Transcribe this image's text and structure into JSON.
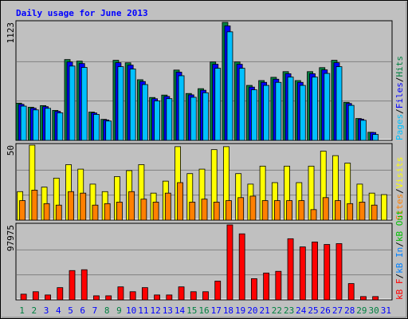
{
  "chart_data": [
    {
      "type": "bar",
      "title": "Daily usage for June 2013",
      "ylim": [
        0,
        1123
      ],
      "yticks": [
        1123
      ],
      "legend_separator": "/",
      "series": [
        {
          "name": "Pages",
          "color": "#00c0ff",
          "values": [
            326,
            290,
            305,
            262,
            707,
            694,
            247,
            184,
            701,
            679,
            531,
            375,
            397,
            615,
            410,
            453,
            686,
            1033,
            686,
            481,
            523,
            552,
            602,
            523,
            602,
            637,
            701,
            333,
            191,
            56,
            0
          ]
        },
        {
          "name": "Files",
          "color": "#0000ff",
          "values": [
            343,
            306,
            321,
            276,
            746,
            731,
            261,
            194,
            739,
            716,
            560,
            396,
            418,
            649,
            433,
            477,
            724,
            1089,
            724,
            507,
            552,
            582,
            634,
            552,
            634,
            671,
            739,
            351,
            202,
            75,
            0
          ]
        },
        {
          "name": "Hits",
          "color": "#008040",
          "values": [
            354,
            315,
            331,
            285,
            769,
            754,
            269,
            200,
            762,
            738,
            577,
            408,
            431,
            669,
            446,
            492,
            746,
            1123,
            746,
            523,
            569,
            600,
            654,
            569,
            654,
            692,
            762,
            362,
            208,
            77,
            0
          ]
        }
      ]
    },
    {
      "type": "bar",
      "ylim": [
        0,
        50
      ],
      "yticks": [
        50
      ],
      "legend_separator": "/",
      "series": [
        {
          "name": "Sites",
          "color": "#ff8000",
          "values": [
            13,
            20,
            11,
            10,
            19,
            18,
            10,
            11,
            12,
            19,
            14,
            12,
            18,
            25,
            12,
            14,
            12,
            13,
            15,
            16,
            13,
            13,
            13,
            13,
            7,
            15,
            13,
            11,
            12,
            10,
            0
          ]
        },
        {
          "name": "Visits",
          "color": "#ffff00",
          "values": [
            19,
            50,
            22,
            28,
            37,
            34,
            24,
            19,
            29,
            33,
            37,
            18,
            26,
            49,
            31,
            34,
            47,
            49,
            31,
            24,
            36,
            25,
            36,
            25,
            36,
            46,
            43,
            38,
            24,
            18,
            17
          ]
        }
      ]
    },
    {
      "type": "bar",
      "ylim": [
        0,
        97975
      ],
      "yticks": [
        97975
      ],
      "legend_separator": "/",
      "categories": [
        "1",
        "2",
        "3",
        "4",
        "5",
        "6",
        "7",
        "8",
        "9",
        "10",
        "11",
        "12",
        "13",
        "14",
        "15",
        "16",
        "17",
        "18",
        "19",
        "20",
        "21",
        "22",
        "23",
        "24",
        "25",
        "26",
        "27",
        "28",
        "29",
        "30",
        "31"
      ],
      "highlighted": [
        0,
        1,
        7,
        8,
        14,
        15,
        21,
        22,
        28,
        29
      ],
      "highlight_color": "#008040",
      "category_color": "#0000ff",
      "series": [
        {
          "name": "kB F",
          "color": "#ff0000",
          "values": [
            7450,
            10650,
            6400,
            16000,
            38300,
            39400,
            5300,
            5300,
            17000,
            10650,
            16000,
            6400,
            6400,
            17000,
            10650,
            10650,
            24500,
            97975,
            86300,
            27700,
            35100,
            37300,
            79900,
            69200,
            75600,
            72400,
            73500,
            21300,
            4300,
            4300,
            0
          ]
        },
        {
          "name": "kB In",
          "color": "#0080ff",
          "values": [
            0,
            0,
            0,
            0,
            0,
            0,
            0,
            0,
            0,
            0,
            0,
            0,
            0,
            0,
            0,
            0,
            0,
            0,
            0,
            0,
            0,
            0,
            0,
            0,
            0,
            0,
            0,
            0,
            0,
            0,
            0
          ]
        },
        {
          "name": "kB Out",
          "color": "#00c000",
          "values": [
            0,
            0,
            0,
            0,
            0,
            0,
            0,
            0,
            0,
            0,
            0,
            0,
            0,
            0,
            0,
            0,
            0,
            0,
            0,
            0,
            0,
            0,
            0,
            0,
            0,
            0,
            0,
            0,
            0,
            0,
            0
          ]
        }
      ]
    }
  ]
}
